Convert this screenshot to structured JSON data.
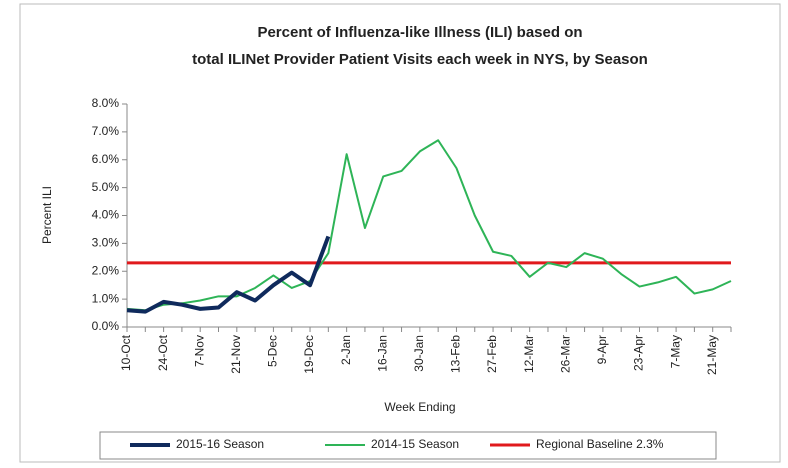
{
  "chart_data": {
    "type": "line",
    "title": [
      "Percent of Influenza-like Illness (ILI) based on",
      "total ILINet Provider Patient Visits each week in NYS, by Season"
    ],
    "x_label": "Week Ending",
    "y_label": "Percent ILI",
    "categories": [
      "10-Oct",
      null,
      "24-Oct",
      null,
      "7-Nov",
      null,
      "21-Nov",
      null,
      "5-Dec",
      null,
      "19-Dec",
      null,
      "2-Jan",
      null,
      "16-Jan",
      null,
      "30-Jan",
      null,
      "13-Feb",
      null,
      "27-Feb",
      null,
      "12-Mar",
      null,
      "26-Mar",
      null,
      "9-Apr",
      null,
      "23-Apr",
      null,
      "7-May",
      null,
      "21-May",
      null
    ],
    "series": [
      {
        "name": "2015-16 Season",
        "color": "#0f2a5c",
        "width": 4,
        "values": [
          0.6,
          0.55,
          0.9,
          0.8,
          0.65,
          0.7,
          1.25,
          0.95,
          1.5,
          1.95,
          1.5,
          3.25,
          null,
          null,
          null,
          null,
          null,
          null,
          null,
          null,
          null,
          null,
          null,
          null,
          null,
          null,
          null,
          null,
          null,
          null,
          null,
          null,
          null,
          null
        ]
      },
      {
        "name": "2014-15 Season",
        "color": "#2eb457",
        "width": 2,
        "values": [
          0.65,
          0.6,
          0.8,
          0.85,
          0.95,
          1.1,
          1.1,
          1.4,
          1.85,
          1.4,
          1.65,
          2.65,
          6.2,
          3.55,
          5.4,
          5.6,
          6.3,
          6.7,
          5.7,
          4.0,
          2.7,
          2.55,
          1.8,
          2.3,
          2.15,
          2.65,
          2.45,
          1.9,
          1.45,
          1.6,
          1.8,
          1.2,
          1.35,
          1.65
        ]
      },
      {
        "name": "Regional Baseline 2.3%",
        "color": "#e0191c",
        "width": 3,
        "values": [
          2.3,
          2.3,
          2.3,
          2.3,
          2.3,
          2.3,
          2.3,
          2.3,
          2.3,
          2.3,
          2.3,
          2.3,
          2.3,
          2.3,
          2.3,
          2.3,
          2.3,
          2.3,
          2.3,
          2.3,
          2.3,
          2.3,
          2.3,
          2.3,
          2.3,
          2.3,
          2.3,
          2.3,
          2.3,
          2.3,
          2.3,
          2.3,
          2.3,
          2.3
        ]
      }
    ],
    "ylim": [
      0,
      8
    ],
    "yticks": [
      {
        "value": 0,
        "label": "0.0%"
      },
      {
        "value": 1,
        "label": "1.0%"
      },
      {
        "value": 2,
        "label": "2.0%"
      },
      {
        "value": 3,
        "label": "3.0%"
      },
      {
        "value": 4,
        "label": "4.0%"
      },
      {
        "value": 5,
        "label": "5.0%"
      },
      {
        "value": 6,
        "label": "6.0%"
      },
      {
        "value": 7,
        "label": "7.0%"
      },
      {
        "value": 8,
        "label": "8.0%"
      }
    ],
    "grid": false,
    "legend": "bottom"
  }
}
